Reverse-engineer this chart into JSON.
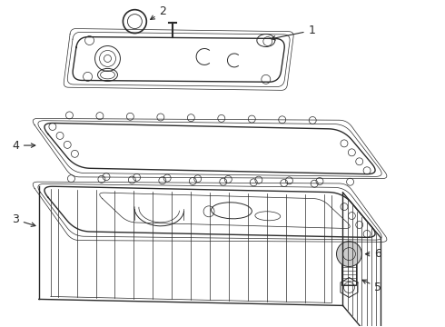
{
  "background_color": "#ffffff",
  "line_color": "#2a2a2a",
  "label_color": "#000000",
  "lw_main": 1.0,
  "lw_thin": 0.5,
  "lw_med": 0.7
}
